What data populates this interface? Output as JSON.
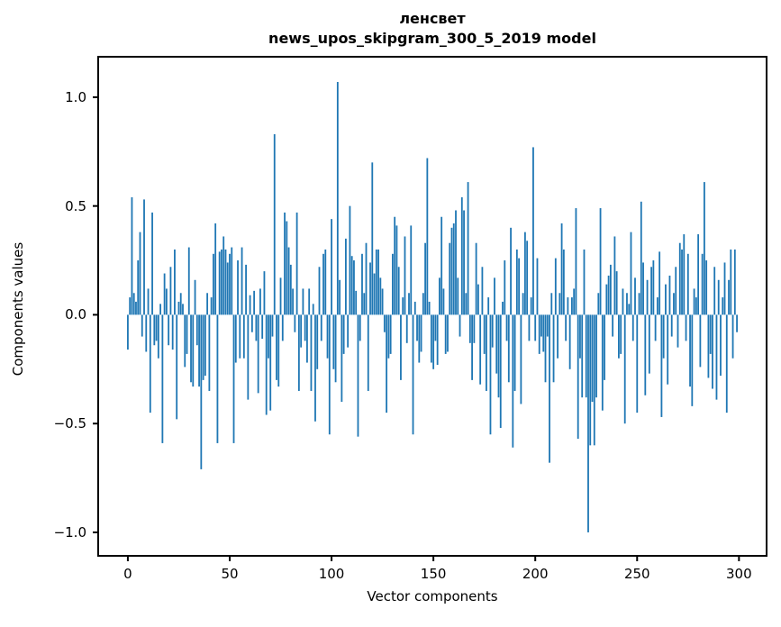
{
  "figure": {
    "title_line1": "ленсвет",
    "title_line2": "news_upos_skipgram_300_5_2019 model",
    "xlabel": "Vector components",
    "ylabel": "Components values",
    "background_color": "#ffffff",
    "spine_color": "#000000"
  },
  "chart_data": {
    "type": "bar",
    "title": "ленсвет",
    "subtitle": "news_upos_skipgram_300_5_2019 model",
    "xlabel": "Vector components",
    "ylabel": "Components values",
    "bar_color": "#1f77b4",
    "grid": false,
    "legend": "none",
    "bar_width_units": 0.8,
    "xlim": [
      -15,
      314
    ],
    "ylim": [
      -1.112,
      1.19
    ],
    "x_ticks": [
      0,
      50,
      100,
      150,
      200,
      250,
      300
    ],
    "x_tick_labels": [
      "0",
      "50",
      "100",
      "150",
      "200",
      "250",
      "300"
    ],
    "y_ticks": [
      1.0,
      0.5,
      0.0,
      -0.5,
      -1.0
    ],
    "y_tick_labels": [
      "1.0",
      "0.5",
      "0.0",
      "−0.5",
      "−1.0"
    ],
    "values": [
      -0.16,
      0.08,
      0.54,
      0.1,
      0.06,
      0.25,
      0.38,
      -0.1,
      0.53,
      -0.17,
      0.12,
      -0.45,
      0.47,
      -0.14,
      -0.12,
      -0.2,
      0.05,
      -0.59,
      0.19,
      0.12,
      -0.14,
      0.22,
      -0.16,
      0.3,
      -0.48,
      0.06,
      0.1,
      0.05,
      -0.24,
      -0.18,
      0.31,
      -0.31,
      -0.33,
      0.16,
      -0.14,
      -0.33,
      -0.71,
      -0.3,
      -0.28,
      0.1,
      -0.35,
      0.08,
      0.28,
      0.42,
      -0.59,
      0.29,
      0.3,
      0.36,
      0.3,
      0.24,
      0.28,
      0.31,
      -0.59,
      -0.22,
      0.25,
      -0.2,
      0.31,
      -0.2,
      0.23,
      -0.39,
      0.09,
      -0.08,
      0.11,
      -0.12,
      -0.36,
      0.12,
      -0.11,
      0.2,
      -0.46,
      -0.2,
      -0.44,
      -0.1,
      0.83,
      -0.3,
      -0.33,
      0.17,
      -0.12,
      0.47,
      0.43,
      0.31,
      0.23,
      0.12,
      -0.08,
      0.47,
      -0.35,
      -0.15,
      0.12,
      -0.12,
      -0.22,
      0.12,
      -0.35,
      0.05,
      -0.49,
      -0.25,
      0.22,
      -0.12,
      0.28,
      0.3,
      -0.2,
      -0.55,
      0.44,
      -0.25,
      -0.31,
      1.07,
      0.16,
      -0.4,
      -0.18,
      0.35,
      -0.15,
      0.5,
      0.27,
      0.25,
      0.11,
      -0.56,
      -0.12,
      0.28,
      0.1,
      0.33,
      -0.35,
      0.24,
      0.7,
      0.19,
      0.3,
      0.3,
      0.17,
      0.12,
      -0.08,
      -0.45,
      -0.2,
      -0.18,
      0.28,
      0.45,
      0.41,
      0.22,
      -0.3,
      0.08,
      0.36,
      -0.13,
      0.1,
      0.41,
      -0.55,
      0.06,
      -0.12,
      -0.22,
      -0.17,
      0.1,
      0.33,
      0.72,
      0.06,
      -0.22,
      -0.25,
      -0.12,
      -0.23,
      0.17,
      0.45,
      0.12,
      -0.18,
      -0.17,
      0.33,
      0.4,
      0.42,
      0.48,
      0.17,
      -0.1,
      0.54,
      0.48,
      0.1,
      0.61,
      -0.13,
      -0.3,
      -0.13,
      0.33,
      0.14,
      -0.32,
      0.22,
      -0.18,
      -0.35,
      0.08,
      -0.55,
      -0.15,
      0.17,
      -0.27,
      -0.38,
      -0.52,
      0.06,
      0.25,
      -0.12,
      -0.31,
      0.4,
      -0.61,
      -0.35,
      0.3,
      0.26,
      -0.41,
      0.1,
      0.38,
      0.34,
      -0.12,
      0.08,
      0.77,
      -0.12,
      0.26,
      -0.18,
      -0.1,
      -0.17,
      -0.31,
      -0.1,
      -0.68,
      0.1,
      -0.31,
      0.26,
      -0.2,
      0.1,
      0.42,
      0.3,
      -0.12,
      0.08,
      -0.25,
      0.08,
      0.12,
      0.49,
      -0.57,
      -0.2,
      -0.38,
      0.3,
      -0.38,
      -1.0,
      -0.6,
      -0.4,
      -0.6,
      -0.38,
      0.1,
      0.49,
      -0.44,
      -0.3,
      0.14,
      0.18,
      0.23,
      -0.1,
      0.36,
      0.2,
      -0.2,
      -0.18,
      0.12,
      -0.5,
      0.1,
      0.05,
      0.38,
      -0.12,
      0.17,
      -0.45,
      0.1,
      0.52,
      0.24,
      -0.37,
      0.16,
      -0.27,
      0.22,
      0.25,
      -0.12,
      0.08,
      0.29,
      -0.47,
      -0.2,
      0.14,
      -0.32,
      0.18,
      -0.1,
      0.1,
      0.22,
      -0.15,
      0.33,
      0.3,
      0.37,
      -0.12,
      0.28,
      -0.33,
      -0.42,
      0.12,
      0.08,
      0.37,
      -0.24,
      0.28,
      0.61,
      0.25,
      -0.29,
      -0.18,
      -0.34,
      0.22,
      -0.39,
      0.16,
      -0.28,
      0.08,
      0.24,
      -0.45,
      0.16,
      0.3,
      -0.2,
      0.3,
      -0.08
    ]
  }
}
